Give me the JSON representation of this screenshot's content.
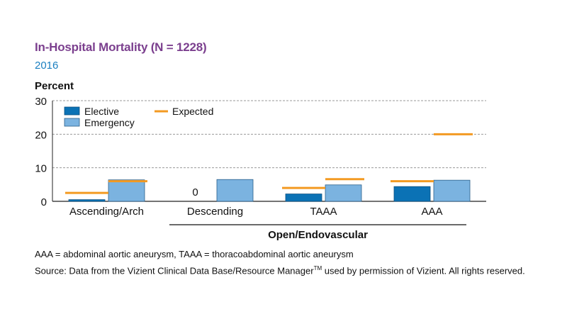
{
  "title": "In-Hospital Mortality (N = 1228)",
  "subtitle": "2016",
  "chart_data": {
    "type": "bar",
    "ylabel": "Percent",
    "ylim": [
      0,
      30
    ],
    "yticks": [
      0,
      10,
      20,
      30
    ],
    "grid": true,
    "categories": [
      "Ascending/Arch",
      "Descending",
      "TAAA",
      "AAA"
    ],
    "series": [
      {
        "name": "Elective",
        "color": "#0b72b5",
        "values": [
          0.5,
          0,
          2.2,
          4.4
        ]
      },
      {
        "name": "Emergency",
        "color": "#7bb3e0",
        "values": [
          6.4,
          6.5,
          4.9,
          6.3
        ]
      }
    ],
    "expected": {
      "name": "Expected",
      "color": "#f39a22",
      "elective": [
        2.5,
        null,
        4.0,
        6.0
      ],
      "emergency": [
        6.0,
        null,
        6.6,
        20.0
      ]
    },
    "zero_labels": [
      "",
      "0",
      "",
      ""
    ],
    "group_label": "Open/Endovascular",
    "legend_position": "top-left"
  },
  "footnotes": {
    "abbreviations": "AAA = abdominal aortic aneurysm, TAAA = thoracoabdominal aortic aneurysm",
    "source_main": "Source: Data from the Vizient Clinical Data Base/Resource Manager",
    "source_tm": "TM",
    "source_end": " used by permission of Vizient. All rights reserved."
  }
}
